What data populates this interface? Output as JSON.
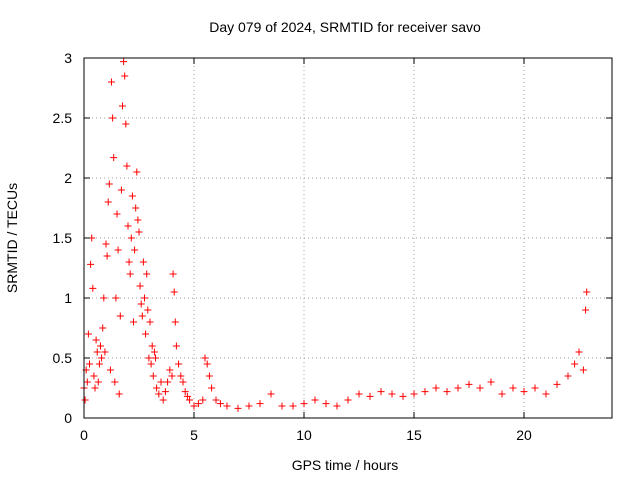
{
  "chart_data": {
    "type": "scatter",
    "title": "Day 079 of 2024, SRMTID for receiver savo",
    "xlabel": "GPS time / hours",
    "ylabel": "SRMTID / TECUs",
    "xlim": [
      0,
      24
    ],
    "ylim": [
      0,
      3
    ],
    "xticks": [
      0,
      5,
      10,
      15,
      20
    ],
    "yticks": [
      0,
      0.5,
      1,
      1.5,
      2,
      2.5,
      3
    ],
    "xtick_labels": [
      "0",
      "5",
      "10",
      "15",
      "20"
    ],
    "ytick_labels": [
      "0",
      "0.5",
      "1",
      "1.5",
      "2",
      "2.5",
      "3"
    ],
    "grid": true,
    "marker": "+",
    "series": [
      {
        "name": "SRMTID",
        "color": "#ff0000",
        "points": [
          [
            0.0,
            0.25
          ],
          [
            0.05,
            0.15
          ],
          [
            0.1,
            0.4
          ],
          [
            0.15,
            0.3
          ],
          [
            0.2,
            0.7
          ],
          [
            0.25,
            0.45
          ],
          [
            0.3,
            1.28
          ],
          [
            0.35,
            1.5
          ],
          [
            0.4,
            1.08
          ],
          [
            0.45,
            0.35
          ],
          [
            0.5,
            0.25
          ],
          [
            0.55,
            0.65
          ],
          [
            0.6,
            0.55
          ],
          [
            0.65,
            0.3
          ],
          [
            0.7,
            0.45
          ],
          [
            0.75,
            0.6
          ],
          [
            0.8,
            0.5
          ],
          [
            0.85,
            0.75
          ],
          [
            0.9,
            1.0
          ],
          [
            0.95,
            0.55
          ],
          [
            1.0,
            1.45
          ],
          [
            1.05,
            1.35
          ],
          [
            1.1,
            1.8
          ],
          [
            1.15,
            1.95
          ],
          [
            1.2,
            0.4
          ],
          [
            1.25,
            2.8
          ],
          [
            1.3,
            2.5
          ],
          [
            1.35,
            2.17
          ],
          [
            1.4,
            0.3
          ],
          [
            1.45,
            1.0
          ],
          [
            1.5,
            1.7
          ],
          [
            1.55,
            1.4
          ],
          [
            1.6,
            0.2
          ],
          [
            1.65,
            0.85
          ],
          [
            1.7,
            1.9
          ],
          [
            1.75,
            2.6
          ],
          [
            1.8,
            2.97
          ],
          [
            1.85,
            2.85
          ],
          [
            1.9,
            2.45
          ],
          [
            1.95,
            2.1
          ],
          [
            2.0,
            1.6
          ],
          [
            2.05,
            1.3
          ],
          [
            2.1,
            1.2
          ],
          [
            2.15,
            1.5
          ],
          [
            2.2,
            1.85
          ],
          [
            2.25,
            0.8
          ],
          [
            2.3,
            1.4
          ],
          [
            2.35,
            1.75
          ],
          [
            2.4,
            2.05
          ],
          [
            2.45,
            1.65
          ],
          [
            2.5,
            1.55
          ],
          [
            2.55,
            1.1
          ],
          [
            2.6,
            0.95
          ],
          [
            2.65,
            0.85
          ],
          [
            2.7,
            1.3
          ],
          [
            2.75,
            1.0
          ],
          [
            2.8,
            0.7
          ],
          [
            2.85,
            1.2
          ],
          [
            2.9,
            0.9
          ],
          [
            2.95,
            0.5
          ],
          [
            3.0,
            0.8
          ],
          [
            3.05,
            0.45
          ],
          [
            3.1,
            0.6
          ],
          [
            3.15,
            0.35
          ],
          [
            3.2,
            0.55
          ],
          [
            3.25,
            0.5
          ],
          [
            3.3,
            0.25
          ],
          [
            3.4,
            0.2
          ],
          [
            3.5,
            0.3
          ],
          [
            3.6,
            0.15
          ],
          [
            3.7,
            0.22
          ],
          [
            3.8,
            0.3
          ],
          [
            3.9,
            0.4
          ],
          [
            4.0,
            0.35
          ],
          [
            4.05,
            1.2
          ],
          [
            4.1,
            1.05
          ],
          [
            4.15,
            0.8
          ],
          [
            4.2,
            0.6
          ],
          [
            4.3,
            0.45
          ],
          [
            4.4,
            0.35
          ],
          [
            4.5,
            0.3
          ],
          [
            4.6,
            0.22
          ],
          [
            4.7,
            0.18
          ],
          [
            4.8,
            0.15
          ],
          [
            5.0,
            0.1
          ],
          [
            5.2,
            0.12
          ],
          [
            5.4,
            0.15
          ],
          [
            5.5,
            0.5
          ],
          [
            5.6,
            0.45
          ],
          [
            5.7,
            0.35
          ],
          [
            5.8,
            0.25
          ],
          [
            6.0,
            0.15
          ],
          [
            6.2,
            0.12
          ],
          [
            6.5,
            0.1
          ],
          [
            7.0,
            0.08
          ],
          [
            7.5,
            0.1
          ],
          [
            8.0,
            0.12
          ],
          [
            8.5,
            0.2
          ],
          [
            9.0,
            0.1
          ],
          [
            9.5,
            0.1
          ],
          [
            10.0,
            0.12
          ],
          [
            10.5,
            0.15
          ],
          [
            11.0,
            0.12
          ],
          [
            11.5,
            0.1
          ],
          [
            12.0,
            0.15
          ],
          [
            12.5,
            0.2
          ],
          [
            13.0,
            0.18
          ],
          [
            13.5,
            0.22
          ],
          [
            14.0,
            0.2
          ],
          [
            14.5,
            0.18
          ],
          [
            15.0,
            0.2
          ],
          [
            15.5,
            0.22
          ],
          [
            16.0,
            0.25
          ],
          [
            16.5,
            0.22
          ],
          [
            17.0,
            0.25
          ],
          [
            17.5,
            0.28
          ],
          [
            18.0,
            0.25
          ],
          [
            18.5,
            0.3
          ],
          [
            19.0,
            0.2
          ],
          [
            19.5,
            0.25
          ],
          [
            20.0,
            0.22
          ],
          [
            20.5,
            0.25
          ],
          [
            21.0,
            0.2
          ],
          [
            21.5,
            0.28
          ],
          [
            22.0,
            0.35
          ],
          [
            22.3,
            0.45
          ],
          [
            22.5,
            0.55
          ],
          [
            22.7,
            0.4
          ],
          [
            22.8,
            0.9
          ],
          [
            22.85,
            1.05
          ]
        ]
      }
    ]
  }
}
